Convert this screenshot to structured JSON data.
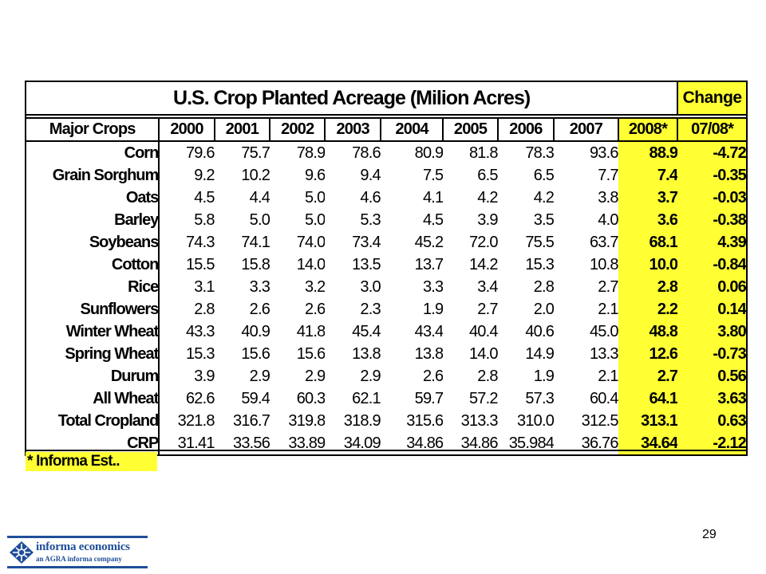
{
  "table": {
    "title": "U.S. Crop Planted Acreage (Milion Acres)",
    "change_title": "Change",
    "headers": [
      "Major Crops",
      "2000",
      "2001",
      "2002",
      "2003",
      "2004",
      "2005",
      "2006",
      "2007",
      "2008*",
      "07/08*"
    ],
    "rows": [
      [
        "Corn",
        "79.6",
        "75.7",
        "78.9",
        "78.6",
        "80.9",
        "81.8",
        "78.3",
        "93.6",
        "88.9",
        "-4.72"
      ],
      [
        "Grain Sorghum",
        "9.2",
        "10.2",
        "9.6",
        "9.4",
        "7.5",
        "6.5",
        "6.5",
        "7.7",
        "7.4",
        "-0.35"
      ],
      [
        "Oats",
        "4.5",
        "4.4",
        "5.0",
        "4.6",
        "4.1",
        "4.2",
        "4.2",
        "3.8",
        "3.7",
        "-0.03"
      ],
      [
        "Barley",
        "5.8",
        "5.0",
        "5.0",
        "5.3",
        "4.5",
        "3.9",
        "3.5",
        "4.0",
        "3.6",
        "-0.38"
      ],
      [
        "Soybeans",
        "74.3",
        "74.1",
        "74.0",
        "73.4",
        "45.2",
        "72.0",
        "75.5",
        "63.7",
        "68.1",
        "4.39"
      ],
      [
        "Cotton",
        "15.5",
        "15.8",
        "14.0",
        "13.5",
        "13.7",
        "14.2",
        "15.3",
        "10.8",
        "10.0",
        "-0.84"
      ],
      [
        "Rice",
        "3.1",
        "3.3",
        "3.2",
        "3.0",
        "3.3",
        "3.4",
        "2.8",
        "2.7",
        "2.8",
        "0.06"
      ],
      [
        "Sunflowers",
        "2.8",
        "2.6",
        "2.6",
        "2.3",
        "1.9",
        "2.7",
        "2.0",
        "2.1",
        "2.2",
        "0.14"
      ],
      [
        "Winter Wheat",
        "43.3",
        "40.9",
        "41.8",
        "45.4",
        "43.4",
        "40.4",
        "40.6",
        "45.0",
        "48.8",
        "3.80"
      ],
      [
        "Spring Wheat",
        "15.3",
        "15.6",
        "15.6",
        "13.8",
        "13.8",
        "14.0",
        "14.9",
        "13.3",
        "12.6",
        "-0.73"
      ],
      [
        "Durum",
        "3.9",
        "2.9",
        "2.9",
        "2.9",
        "2.6",
        "2.8",
        "1.9",
        "2.1",
        "2.7",
        "0.56"
      ],
      [
        "All Wheat",
        "62.6",
        "59.4",
        "60.3",
        "62.1",
        "59.7",
        "57.2",
        "57.3",
        "60.4",
        "64.1",
        "3.63"
      ],
      [
        "Total Cropland",
        "321.8",
        "316.7",
        "319.8",
        "318.9",
        "315.6",
        "313.3",
        "310.0",
        "312.5",
        "313.1",
        "0.63"
      ],
      [
        "CRP",
        "31.41",
        "33.56",
        "33.89",
        "34.09",
        "34.86",
        "34.86",
        "35.984",
        "36.76",
        "34.64",
        "-2.12"
      ]
    ]
  },
  "footnote": "* Informa Est..",
  "page_number": "29",
  "logo": {
    "name": "informa economics",
    "tagline": "an AGRA informa company"
  },
  "colors": {
    "highlight": "#ffff33",
    "brand": "#1f4e99"
  }
}
